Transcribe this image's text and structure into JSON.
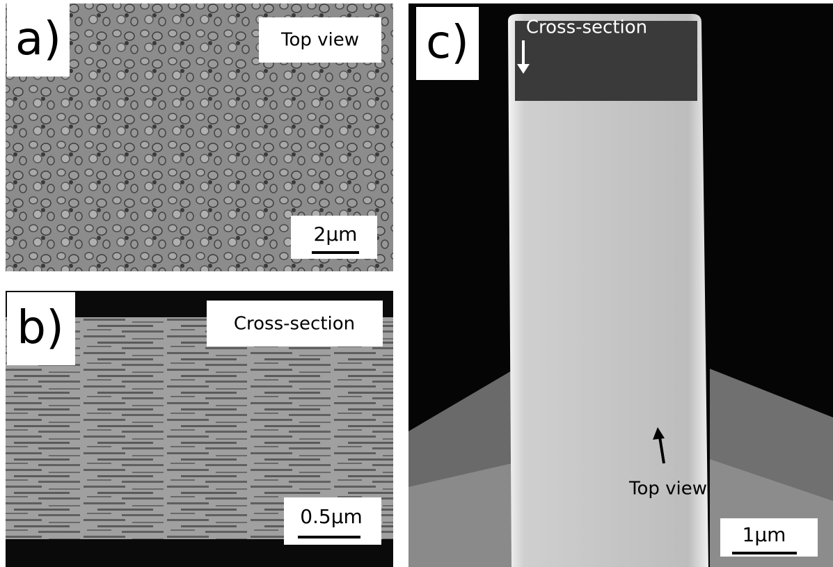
{
  "panels": [
    {
      "label": "a)",
      "caption": "Top view",
      "scale_bar": "2µm"
    },
    {
      "label": "b)",
      "caption": "Cross-section",
      "scale_bar": "0.5µm"
    },
    {
      "label": "c)",
      "scale_bar": "1µm",
      "annotations": [
        "Cross-section",
        "Top view"
      ]
    }
  ]
}
